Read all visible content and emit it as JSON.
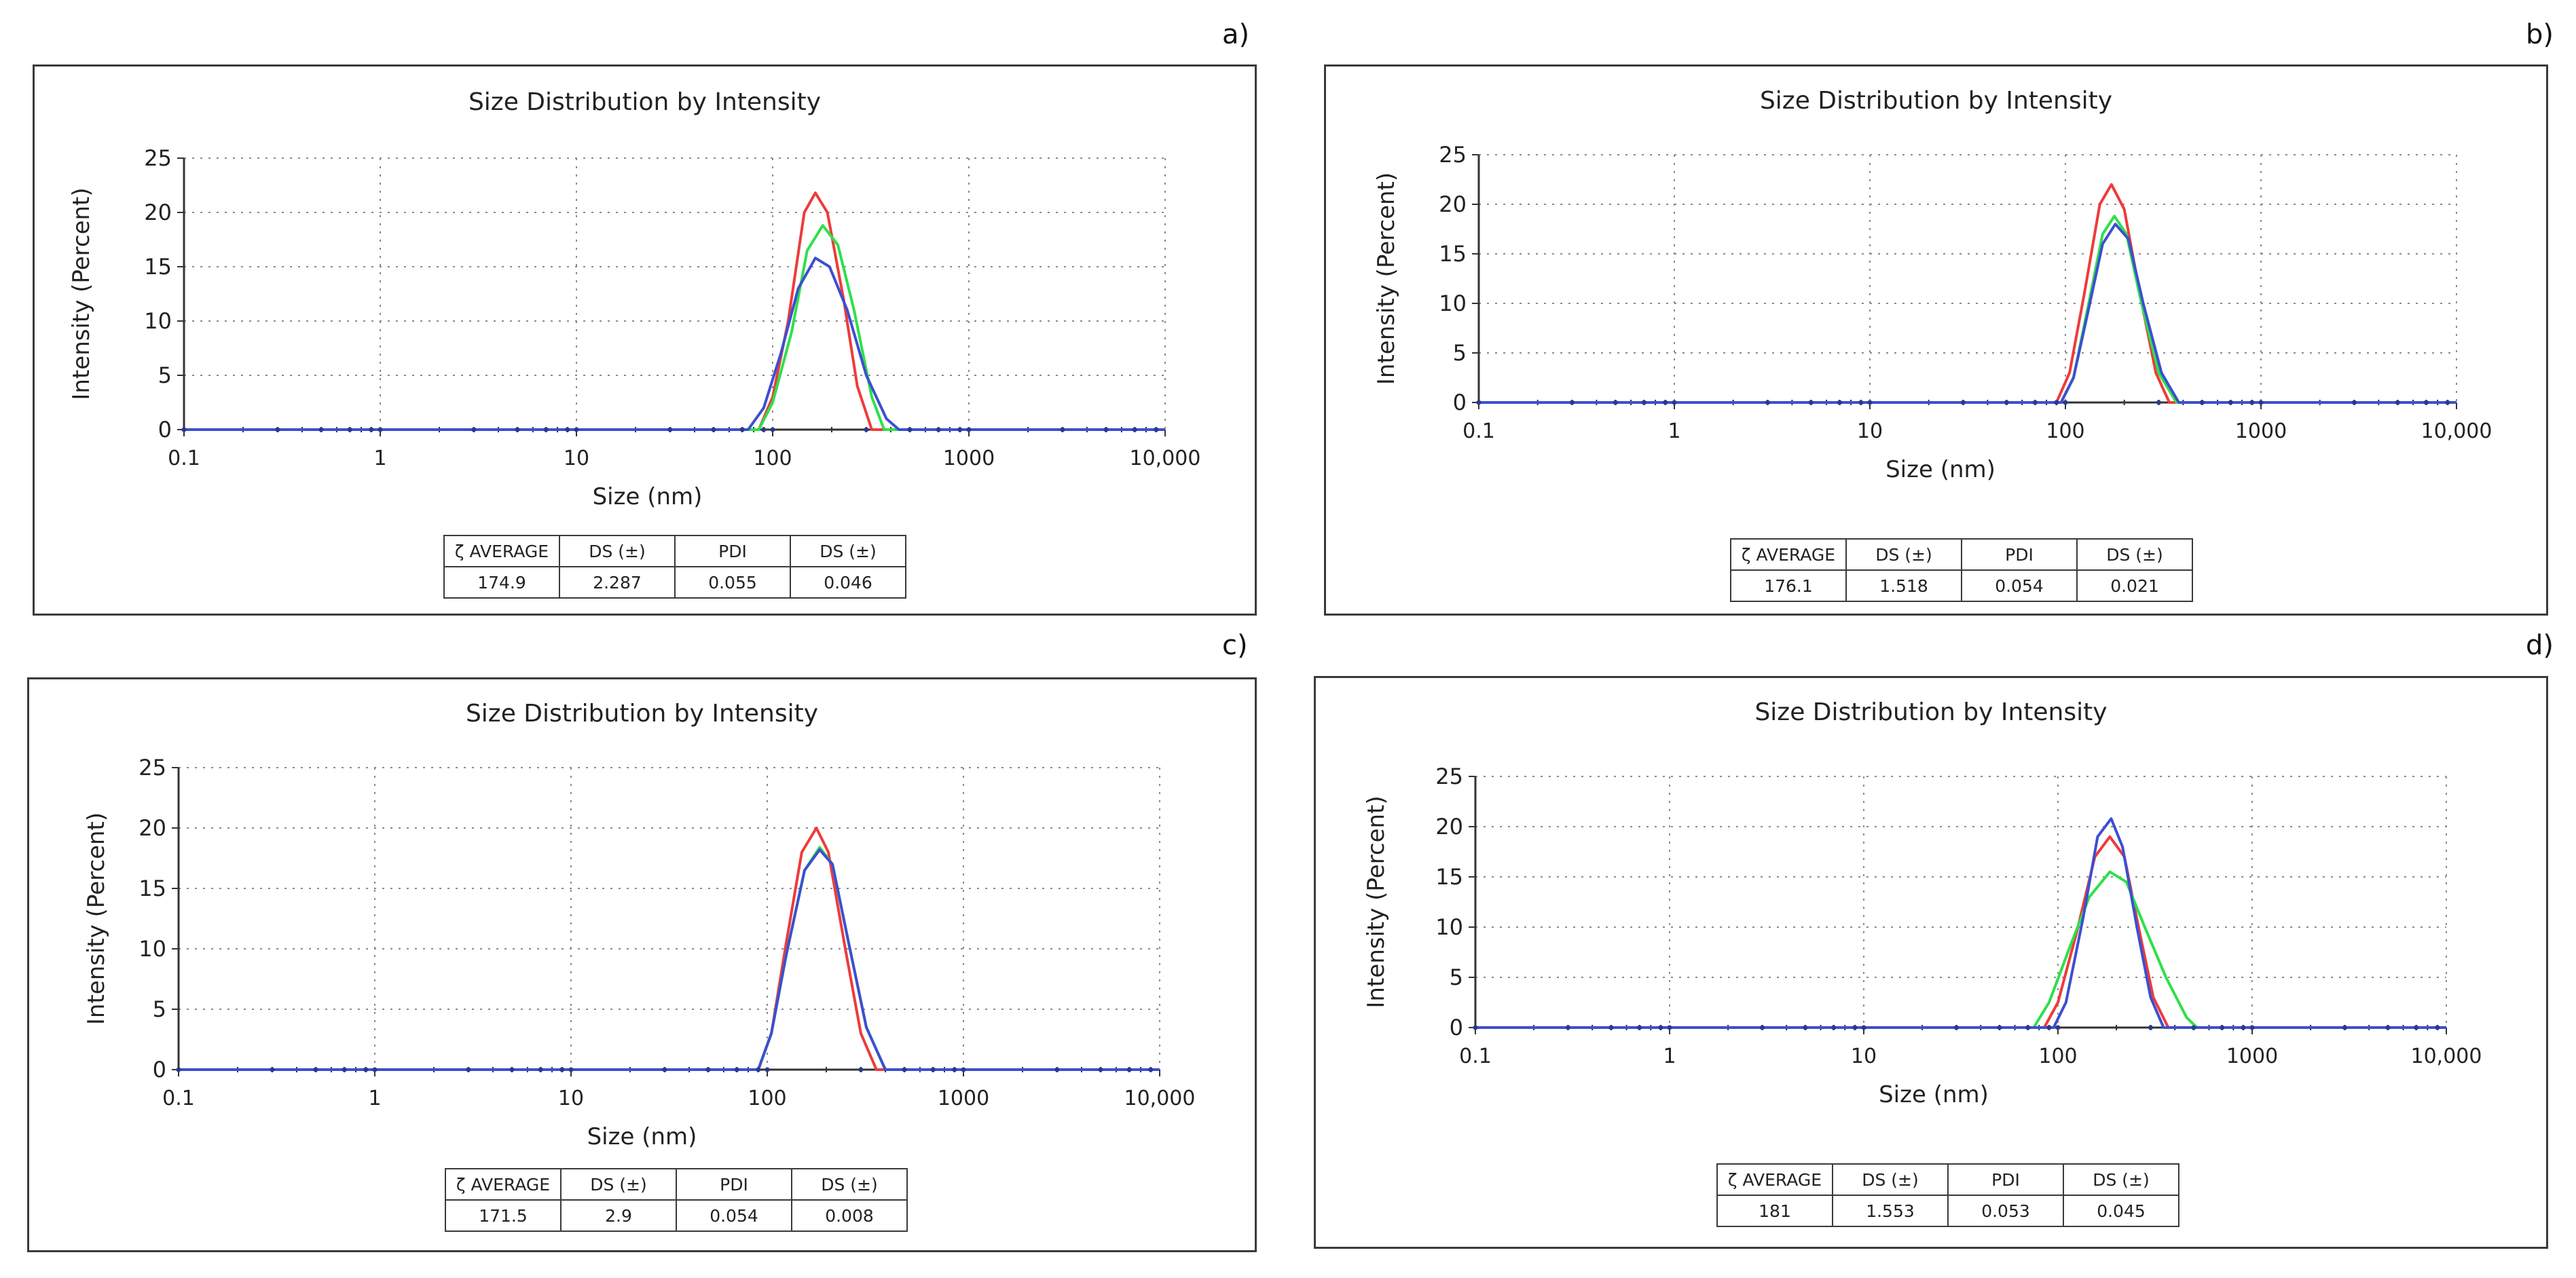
{
  "panels": [
    {
      "label": "a)",
      "chart_data": {
        "type": "line",
        "title": "Size Distribution by Intensity",
        "xlabel": "Size (nm)",
        "ylabel": "Intensity (Percent)",
        "xscale": "log",
        "xlim": [
          0.1,
          10000
        ],
        "ylim": [
          0,
          25
        ],
        "x_ticks": [
          "0.1",
          "1",
          "10",
          "100",
          "1000",
          "10,000"
        ],
        "y_ticks": [
          "0",
          "5",
          "10",
          "15",
          "20",
          "25"
        ],
        "grid": true,
        "series": [
          {
            "name": "red",
            "color": "#ee3b3b",
            "x": [
              0.1,
              85,
              100,
              120,
              145,
              165,
              190,
              230,
              270,
              320,
              10000
            ],
            "y": [
              0,
              0,
              3,
              10,
              20,
              21.8,
              20,
              12,
              4,
              0,
              0
            ]
          },
          {
            "name": "green",
            "color": "#2ee04a",
            "x": [
              0.1,
              85,
              100,
              125,
              150,
              180,
              215,
              260,
              320,
              370,
              10000
            ],
            "y": [
              0,
              0,
              2.5,
              9,
              16.5,
              18.8,
              17,
              11,
              3,
              0,
              0
            ]
          },
          {
            "name": "blue",
            "color": "#3c4fd0",
            "x": [
              0.1,
              75,
              90,
              110,
              135,
              165,
              195,
              240,
              300,
              380,
              440,
              10000
            ],
            "y": [
              0,
              0,
              2,
              7,
              13,
              15.8,
              15,
              11,
              5,
              1,
              0,
              0
            ]
          }
        ],
        "table": {
          "headers": [
            "ζ AVERAGE",
            "DS (±)",
            "PDI",
            "DS (±)"
          ],
          "values": [
            "174.9",
            "2.287",
            "0.055",
            "0.046"
          ]
        }
      }
    },
    {
      "label": "b)",
      "chart_data": {
        "type": "line",
        "title": "Size Distribution by Intensity",
        "xlabel": "Size (nm)",
        "ylabel": "Intensity (Percent)",
        "xscale": "log",
        "xlim": [
          0.1,
          10000
        ],
        "ylim": [
          0,
          25
        ],
        "x_ticks": [
          "0.1",
          "1",
          "10",
          "100",
          "1000",
          "10,000"
        ],
        "y_ticks": [
          "0",
          "5",
          "10",
          "15",
          "20",
          "25"
        ],
        "grid": true,
        "series": [
          {
            "name": "red",
            "color": "#ee3b3b",
            "x": [
              0.1,
              90,
              105,
              125,
              150,
              172,
              200,
              240,
              290,
              340,
              10000
            ],
            "y": [
              0,
              0,
              3,
              11,
              20,
              22,
              19.5,
              11,
              3,
              0,
              0
            ]
          },
          {
            "name": "green",
            "color": "#2ee04a",
            "x": [
              0.1,
              95,
              110,
              130,
              155,
              178,
              205,
              245,
              300,
              370,
              10000
            ],
            "y": [
              0,
              0,
              2.5,
              9.5,
              17,
              18.8,
              17,
              10,
              3,
              0,
              0
            ]
          },
          {
            "name": "blue",
            "color": "#3c4fd0",
            "x": [
              0.1,
              95,
              110,
              130,
              155,
              180,
              210,
              250,
              310,
              380,
              10000
            ],
            "y": [
              0,
              0,
              2.5,
              9,
              16,
              18,
              16.5,
              10,
              3,
              0,
              0
            ]
          }
        ],
        "table": {
          "headers": [
            "ζ AVERAGE",
            "DS (±)",
            "PDI",
            "DS (±)"
          ],
          "values": [
            "176.1",
            "1.518",
            "0.054",
            "0.021"
          ]
        }
      }
    },
    {
      "label": "c)",
      "chart_data": {
        "type": "line",
        "title": "Size Distribution by Intensity",
        "xlabel": "Size (nm)",
        "ylabel": "Intensity (Percent)",
        "xscale": "log",
        "xlim": [
          0.1,
          10000
        ],
        "ylim": [
          0,
          25
        ],
        "x_ticks": [
          "0.1",
          "1",
          "10",
          "100",
          "1000",
          "10,000"
        ],
        "y_ticks": [
          "0",
          "5",
          "10",
          "15",
          "20",
          "25"
        ],
        "grid": true,
        "series": [
          {
            "name": "red",
            "color": "#ee3b3b",
            "x": [
              0.1,
              90,
              105,
              125,
              150,
              178,
              205,
              250,
              300,
              360,
              10000
            ],
            "y": [
              0,
              0,
              3,
              10.5,
              18,
              20,
              18,
              10,
              3,
              0,
              0
            ]
          },
          {
            "name": "green",
            "color": "#2ee04a",
            "x": [
              0.1,
              90,
              105,
              125,
              155,
              185,
              215,
              260,
              320,
              400,
              10000
            ],
            "y": [
              0,
              0,
              3,
              9.5,
              16.5,
              18.4,
              17,
              10.5,
              3.5,
              0,
              0
            ]
          },
          {
            "name": "blue",
            "color": "#3c4fd0",
            "x": [
              0.1,
              90,
              105,
              125,
              155,
              185,
              215,
              260,
              320,
              400,
              10000
            ],
            "y": [
              0,
              0,
              3,
              9.5,
              16.5,
              18.2,
              17,
              10.5,
              3.5,
              0,
              0
            ]
          }
        ],
        "table": {
          "headers": [
            "ζ AVERAGE",
            "DS (±)",
            "PDI",
            "DS (±)"
          ],
          "values": [
            "171.5",
            "2.9",
            "0.054",
            "0.008"
          ]
        }
      }
    },
    {
      "label": "d)",
      "chart_data": {
        "type": "line",
        "title": "Size Distribution by Intensity",
        "xlabel": "Size (nm)",
        "ylabel": "Intensity (Percent)",
        "xscale": "log",
        "xlim": [
          0.1,
          10000
        ],
        "ylim": [
          0,
          25
        ],
        "x_ticks": [
          "0.1",
          "1",
          "10",
          "100",
          "1000",
          "10,000"
        ],
        "y_ticks": [
          "0",
          "5",
          "10",
          "15",
          "20",
          "25"
        ],
        "grid": true,
        "series": [
          {
            "name": "red",
            "color": "#ee3b3b",
            "x": [
              0.1,
              85,
              100,
              125,
              155,
              185,
              220,
              260,
              310,
              370,
              10000
            ],
            "y": [
              0,
              0,
              2.5,
              9.5,
              17,
              19,
              17,
              10,
              3,
              0,
              0
            ]
          },
          {
            "name": "green",
            "color": "#2ee04a",
            "x": [
              0.1,
              75,
              90,
              115,
              145,
              185,
              225,
              280,
              360,
              460,
              520,
              10000
            ],
            "y": [
              0,
              0,
              2.5,
              8,
              13,
              15.5,
              14.5,
              10,
              5,
              1,
              0,
              0
            ]
          },
          {
            "name": "blue",
            "color": "#3c4fd0",
            "x": [
              0.1,
              95,
              110,
              135,
              160,
              188,
              215,
              255,
              300,
              350,
              10000
            ],
            "y": [
              0,
              0,
              2.5,
              11,
              19,
              20.8,
              18,
              10,
              3,
              0,
              0
            ]
          }
        ],
        "table": {
          "headers": [
            "ζ AVERAGE",
            "DS (±)",
            "PDI",
            "DS (±)"
          ],
          "values": [
            "181",
            "1.553",
            "0.053",
            "0.045"
          ]
        }
      }
    }
  ]
}
